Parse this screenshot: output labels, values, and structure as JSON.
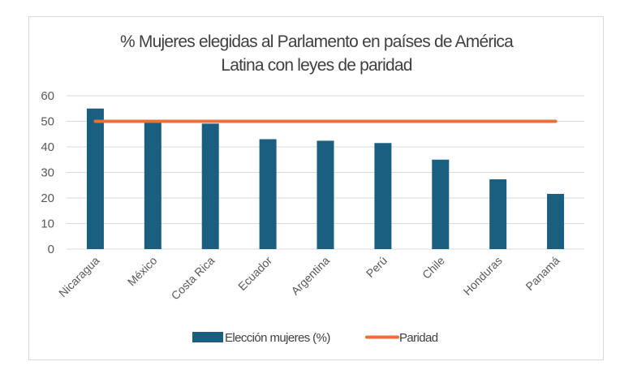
{
  "chart_data": {
    "type": "bar",
    "title_lines": [
      "% Mujeres elegidas al Parlamento en países de América",
      "Latina con leyes de paridad"
    ],
    "categories": [
      "Nicaragua",
      "México",
      "Costa Rica",
      "Ecuador",
      "Argentina",
      "Perú",
      "Chile",
      "Honduras",
      "Panamá"
    ],
    "series": [
      {
        "name": "Elección mujeres (%)",
        "type": "bar",
        "color": "#1a5f80",
        "values": [
          55,
          50.2,
          49.1,
          43,
          42.4,
          41.5,
          35,
          27.3,
          21.6
        ]
      },
      {
        "name": "Paridad",
        "type": "line",
        "color": "#e8703a",
        "values": [
          50,
          50,
          50,
          50,
          50,
          50,
          50,
          50,
          50
        ]
      }
    ],
    "ylim": [
      0,
      60
    ],
    "yticks": [
      "0",
      "10",
      "20",
      "30",
      "40",
      "50",
      "60"
    ],
    "grid": true,
    "legend": "bottom",
    "xlabel": "",
    "ylabel": ""
  }
}
